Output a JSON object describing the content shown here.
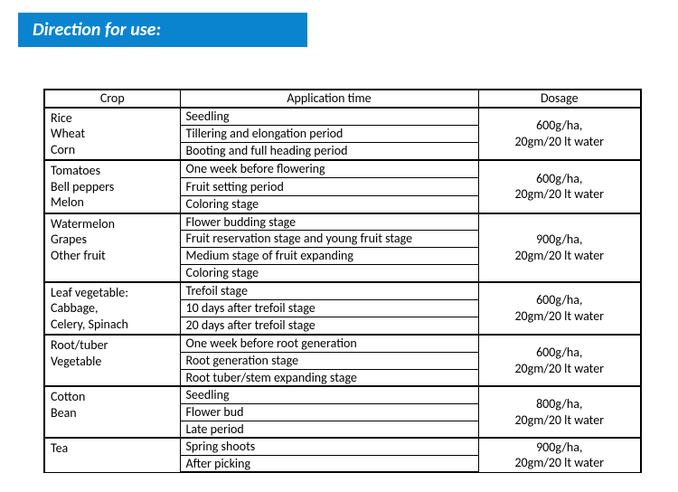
{
  "banner": {
    "title": "Direction for use:"
  },
  "headers": {
    "crop": "Crop",
    "app": "Application time",
    "dos": "Dosage"
  },
  "groups": [
    {
      "crops": [
        "Rice",
        "Wheat",
        "Corn"
      ],
      "apps": [
        "Seedling",
        "Tillering and elongation period",
        "Booting and full heading period"
      ],
      "dosage": [
        "600g/ha,",
        "20gm/20 lt water"
      ]
    },
    {
      "crops": [
        "Tomatoes",
        "Bell peppers",
        "Melon"
      ],
      "apps": [
        "One week before flowering",
        "Fruit setting period",
        "Coloring stage"
      ],
      "dosage": [
        "600g/ha,",
        "20gm/20 lt water"
      ]
    },
    {
      "crops": [
        "Watermelon",
        "Grapes",
        "Other fruit"
      ],
      "apps": [
        "Flower budding stage",
        "Fruit reservation stage and young fruit stage",
        "Medium stage of fruit expanding",
        "Coloring stage"
      ],
      "dosage": [
        "900g/ha,",
        "20gm/20 lt water"
      ]
    },
    {
      "crops": [
        "Leaf vegetable:",
        "Cabbage,",
        "Celery, Spinach"
      ],
      "apps": [
        "Trefoil stage",
        "10 days after trefoil stage",
        "20 days after trefoil stage"
      ],
      "dosage": [
        "600g/ha,",
        "20gm/20 lt water"
      ]
    },
    {
      "crops": [
        "Root/tuber",
        "Vegetable"
      ],
      "apps": [
        "One week before root generation",
        "Root generation stage",
        "Root tuber/stem expanding stage"
      ],
      "dosage": [
        "600g/ha,",
        "20gm/20 lt water"
      ]
    },
    {
      "crops": [
        "Cotton",
        "Bean"
      ],
      "apps": [
        "Seedling",
        "Flower bud",
        "Late period"
      ],
      "dosage": [
        "800g/ha,",
        "20gm/20 lt water"
      ]
    },
    {
      "crops": [
        "Tea"
      ],
      "apps": [
        "Spring shoots",
        "After picking"
      ],
      "dosage": [
        "900g/ha,",
        "20gm/20 lt water"
      ]
    }
  ],
  "colors": {
    "banner_bg": "#0b84d0",
    "banner_text": "#ffffff",
    "border": "#000000",
    "page_bg": "#ffffff",
    "text": "#000000"
  }
}
